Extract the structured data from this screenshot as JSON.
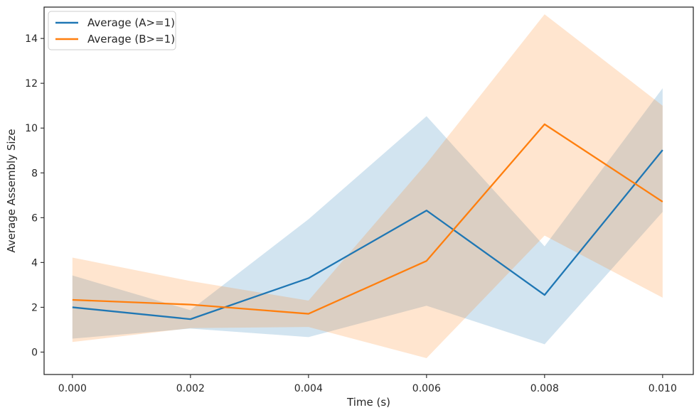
{
  "chart_data": {
    "type": "line",
    "title": "",
    "xlabel": "Time (s)",
    "ylabel": "Average Assembly Size",
    "x": [
      0.0,
      0.002,
      0.004,
      0.006,
      0.008,
      0.01
    ],
    "x_tick_labels": [
      "0.000",
      "0.002",
      "0.004",
      "0.006",
      "0.008",
      "0.010"
    ],
    "y_ticks": [
      0,
      2,
      4,
      6,
      8,
      10,
      12,
      14
    ],
    "xlim": [
      -0.00048,
      0.01052
    ],
    "ylim": [
      -1.0,
      15.4
    ],
    "grid": false,
    "legend_position": "top-left",
    "series": [
      {
        "name": "Average (A>=1)",
        "color": "#1f77b4",
        "values": [
          2.0,
          1.47,
          3.3,
          6.32,
          2.55,
          9.02
        ],
        "band_lower": [
          0.6,
          1.05,
          0.67,
          2.07,
          0.35,
          6.26
        ],
        "band_upper": [
          3.42,
          1.87,
          5.93,
          10.53,
          4.72,
          11.78
        ]
      },
      {
        "name": "Average (B>=1)",
        "color": "#ff7f0e",
        "values": [
          2.33,
          2.12,
          1.71,
          4.07,
          10.17,
          6.71
        ],
        "band_lower": [
          0.45,
          1.07,
          1.12,
          -0.27,
          5.2,
          2.43
        ],
        "band_upper": [
          4.22,
          3.17,
          2.3,
          8.42,
          15.08,
          11.0
        ]
      }
    ]
  }
}
